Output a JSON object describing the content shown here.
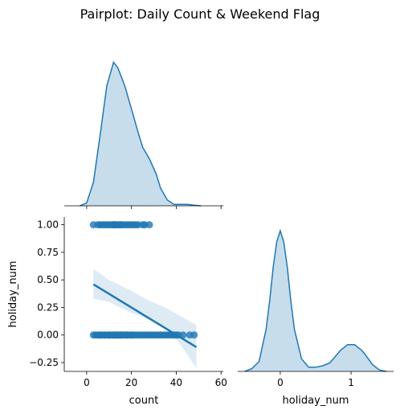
{
  "title": "Pairplot: Daily Count & Weekend Flag",
  "accent_color": "#1f77b4",
  "chart_data": [
    {
      "panel": "count-kde",
      "type": "area",
      "x": [
        -3,
        0,
        3,
        6,
        9,
        12,
        14,
        17,
        20,
        23,
        25,
        28,
        31,
        33,
        36,
        39,
        42,
        45,
        48,
        51
      ],
      "y": [
        0.0,
        0.001,
        0.008,
        0.024,
        0.041,
        0.049,
        0.047,
        0.041,
        0.033,
        0.025,
        0.02,
        0.016,
        0.011,
        0.006,
        0.002,
        0.0005,
        0.0005,
        0.0005,
        0.0002,
        0.0
      ],
      "xlim": [
        -10,
        61
      ],
      "xticks": [
        0,
        20,
        40,
        60
      ]
    },
    {
      "panel": "count-vs-holiday",
      "type": "scatter",
      "xlabel": "count",
      "ylabel": "holiday_num",
      "xlim": [
        -10,
        61
      ],
      "ylim": [
        -0.33,
        1.07
      ],
      "xticks": [
        0,
        20,
        40,
        60
      ],
      "xtick_labels": [
        "0",
        "20",
        "40",
        "60"
      ],
      "yticks": [
        -0.25,
        0.0,
        0.25,
        0.5,
        0.75,
        1.0
      ],
      "ytick_labels": [
        "−0.25",
        "0.00",
        "0.25",
        "0.50",
        "0.75",
        "1.00"
      ],
      "series": [
        {
          "y": 1,
          "x": [
            3,
            5,
            6,
            7,
            8,
            9,
            10,
            11,
            12,
            12,
            13,
            13,
            14,
            15,
            15,
            16,
            17,
            18,
            19,
            20,
            21,
            22,
            23,
            25,
            26,
            28
          ]
        },
        {
          "y": 0,
          "x": [
            3,
            4,
            5,
            6,
            6,
            7,
            8,
            8,
            9,
            10,
            10,
            11,
            12,
            12,
            13,
            13,
            14,
            14,
            15,
            15,
            16,
            16,
            17,
            18,
            18,
            19,
            20,
            20,
            21,
            22,
            23,
            24,
            25,
            26,
            27,
            28,
            29,
            30,
            31,
            32,
            33,
            34,
            35,
            36,
            37,
            38,
            39,
            40,
            41,
            43,
            46,
            48
          ]
        }
      ],
      "regression": {
        "x": [
          3,
          49
        ],
        "y": [
          0.46,
          -0.11
        ]
      },
      "confidence_band": {
        "x": [
          3,
          10,
          20,
          27,
          35,
          42,
          49
        ],
        "upper": [
          0.6,
          0.5,
          0.4,
          0.32,
          0.25,
          0.17,
          0.09
        ],
        "lower": [
          0.33,
          0.3,
          0.2,
          0.15,
          0.06,
          -0.09,
          -0.3
        ]
      }
    },
    {
      "panel": "holiday-kde",
      "type": "area",
      "xlabel": "holiday_num",
      "xlim": [
        -0.6,
        1.6
      ],
      "xticks": [
        0,
        1
      ],
      "xtick_labels": [
        "0",
        "1"
      ],
      "x": [
        -0.5,
        -0.4,
        -0.3,
        -0.2,
        -0.15,
        -0.1,
        -0.05,
        0.0,
        0.05,
        0.1,
        0.15,
        0.2,
        0.3,
        0.4,
        0.5,
        0.6,
        0.7,
        0.8,
        0.85,
        0.9,
        0.95,
        1.0,
        1.05,
        1.1,
        1.15,
        1.2,
        1.3,
        1.4,
        1.5
      ],
      "y": [
        0.0,
        0.02,
        0.07,
        0.3,
        0.5,
        0.74,
        0.92,
        1.0,
        0.92,
        0.74,
        0.5,
        0.3,
        0.09,
        0.03,
        0.03,
        0.04,
        0.06,
        0.12,
        0.15,
        0.17,
        0.19,
        0.19,
        0.19,
        0.17,
        0.15,
        0.12,
        0.05,
        0.01,
        0.0
      ]
    }
  ]
}
